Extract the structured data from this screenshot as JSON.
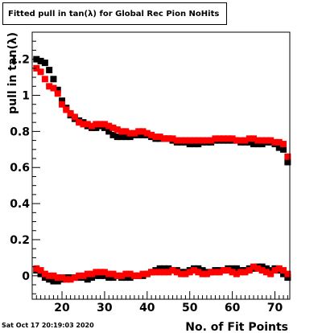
{
  "title": "Fitted pull in tan(λ) for Global Rec Pion NoHits",
  "timestamp": "Sat Oct 17 20:19:03 2020",
  "chart_data": {
    "type": "scatter",
    "title": "Fitted pull in tan(λ) for Global Rec Pion NoHits",
    "xlabel": "No. of Fit Points",
    "ylabel": "pull in tan(λ)",
    "xlim": [
      13,
      73.5
    ],
    "ylim": [
      -0.13,
      1.35
    ],
    "xticks": [
      20,
      30,
      40,
      50,
      60,
      70
    ],
    "yticks": [
      0,
      0.2,
      0.4,
      0.6,
      0.8,
      1,
      1.2
    ],
    "ytick_labels": [
      "0",
      "0.2",
      "0.4",
      "0.6",
      "0.8",
      "1",
      "1.2"
    ],
    "grid": false,
    "series": [
      {
        "color": "#000000",
        "x": [
          14,
          15,
          16,
          17,
          18,
          19,
          20,
          21,
          22,
          23,
          24,
          25,
          26,
          27,
          28,
          29,
          30,
          31,
          32,
          33,
          34,
          35,
          36,
          37,
          38,
          39,
          40,
          41,
          42,
          43,
          44,
          45,
          46,
          47,
          48,
          49,
          50,
          51,
          52,
          53,
          54,
          55,
          56,
          57,
          58,
          59,
          60,
          61,
          62,
          63,
          64,
          65,
          66,
          67,
          68,
          69,
          70,
          71,
          72,
          73
        ],
        "y": [
          1.2,
          1.19,
          1.18,
          1.14,
          1.09,
          1.03,
          0.97,
          0.93,
          0.89,
          0.87,
          0.86,
          0.85,
          0.83,
          0.82,
          0.82,
          0.83,
          0.82,
          0.8,
          0.78,
          0.77,
          0.77,
          0.77,
          0.77,
          0.78,
          0.78,
          0.78,
          0.78,
          0.77,
          0.76,
          0.76,
          0.76,
          0.76,
          0.75,
          0.74,
          0.74,
          0.74,
          0.73,
          0.73,
          0.73,
          0.74,
          0.74,
          0.74,
          0.75,
          0.75,
          0.75,
          0.75,
          0.75,
          0.75,
          0.74,
          0.74,
          0.74,
          0.73,
          0.73,
          0.73,
          0.74,
          0.74,
          0.73,
          0.71,
          0.7,
          0.63
        ]
      },
      {
        "color": "#ff0000",
        "x": [
          14,
          15,
          16,
          17,
          18,
          19,
          20,
          21,
          22,
          23,
          24,
          25,
          26,
          27,
          28,
          29,
          30,
          31,
          32,
          33,
          34,
          35,
          36,
          37,
          38,
          39,
          40,
          41,
          42,
          43,
          44,
          45,
          46,
          47,
          48,
          49,
          50,
          51,
          52,
          53,
          54,
          55,
          56,
          57,
          58,
          59,
          60,
          61,
          62,
          63,
          64,
          65,
          66,
          67,
          68,
          69,
          70,
          71,
          72,
          73
        ],
        "y": [
          1.15,
          1.13,
          1.09,
          1.05,
          1.04,
          1.01,
          0.95,
          0.92,
          0.9,
          0.88,
          0.85,
          0.84,
          0.84,
          0.83,
          0.84,
          0.84,
          0.84,
          0.83,
          0.82,
          0.81,
          0.8,
          0.8,
          0.79,
          0.79,
          0.8,
          0.8,
          0.79,
          0.78,
          0.77,
          0.77,
          0.76,
          0.76,
          0.76,
          0.75,
          0.75,
          0.75,
          0.75,
          0.75,
          0.75,
          0.75,
          0.75,
          0.75,
          0.76,
          0.76,
          0.76,
          0.76,
          0.76,
          0.75,
          0.75,
          0.75,
          0.76,
          0.76,
          0.75,
          0.75,
          0.75,
          0.75,
          0.74,
          0.74,
          0.73,
          0.66
        ]
      },
      {
        "color": "#000000",
        "x": [
          14,
          15,
          16,
          17,
          18,
          19,
          20,
          21,
          22,
          23,
          24,
          25,
          26,
          27,
          28,
          29,
          30,
          31,
          32,
          33,
          34,
          35,
          36,
          37,
          38,
          39,
          40,
          41,
          42,
          43,
          44,
          45,
          46,
          47,
          48,
          49,
          50,
          51,
          52,
          53,
          54,
          55,
          56,
          57,
          58,
          59,
          60,
          61,
          62,
          63,
          64,
          65,
          66,
          67,
          68,
          69,
          70,
          71,
          72,
          73
        ],
        "y": [
          0.03,
          0.01,
          -0.01,
          -0.02,
          -0.03,
          -0.03,
          -0.02,
          -0.01,
          -0.01,
          -0.01,
          -0.01,
          -0.01,
          -0.02,
          -0.01,
          0.0,
          0.0,
          0.0,
          -0.01,
          -0.01,
          0.0,
          -0.01,
          -0.01,
          -0.01,
          0.0,
          0.0,
          0.0,
          0.01,
          0.02,
          0.03,
          0.04,
          0.04,
          0.04,
          0.03,
          0.03,
          0.02,
          0.02,
          0.03,
          0.04,
          0.04,
          0.03,
          0.02,
          0.02,
          0.03,
          0.03,
          0.03,
          0.04,
          0.04,
          0.04,
          0.03,
          0.03,
          0.04,
          0.04,
          0.05,
          0.05,
          0.04,
          0.03,
          0.04,
          0.03,
          0.01,
          -0.01
        ]
      },
      {
        "color": "#ff0000",
        "x": [
          14,
          15,
          16,
          17,
          18,
          19,
          20,
          21,
          22,
          23,
          24,
          25,
          26,
          27,
          28,
          29,
          30,
          31,
          32,
          33,
          34,
          35,
          36,
          37,
          38,
          39,
          40,
          41,
          42,
          43,
          44,
          45,
          46,
          47,
          48,
          49,
          50,
          51,
          52,
          53,
          54,
          55,
          56,
          57,
          58,
          59,
          60,
          61,
          62,
          63,
          64,
          65,
          66,
          67,
          68,
          69,
          70,
          71,
          72,
          73
        ],
        "y": [
          0.04,
          0.03,
          0.01,
          0.0,
          0.0,
          -0.01,
          -0.01,
          -0.02,
          -0.02,
          -0.01,
          0.0,
          0.0,
          0.01,
          0.01,
          0.02,
          0.02,
          0.02,
          0.01,
          0.01,
          0.0,
          0.0,
          0.01,
          0.01,
          0.0,
          0.0,
          0.01,
          0.01,
          0.02,
          0.02,
          0.02,
          0.02,
          0.02,
          0.03,
          0.02,
          0.01,
          0.01,
          0.02,
          0.03,
          0.02,
          0.01,
          0.01,
          0.02,
          0.02,
          0.02,
          0.03,
          0.03,
          0.02,
          0.01,
          0.02,
          0.02,
          0.03,
          0.05,
          0.04,
          0.03,
          0.02,
          0.01,
          0.03,
          0.04,
          0.03,
          0.01
        ]
      }
    ]
  }
}
